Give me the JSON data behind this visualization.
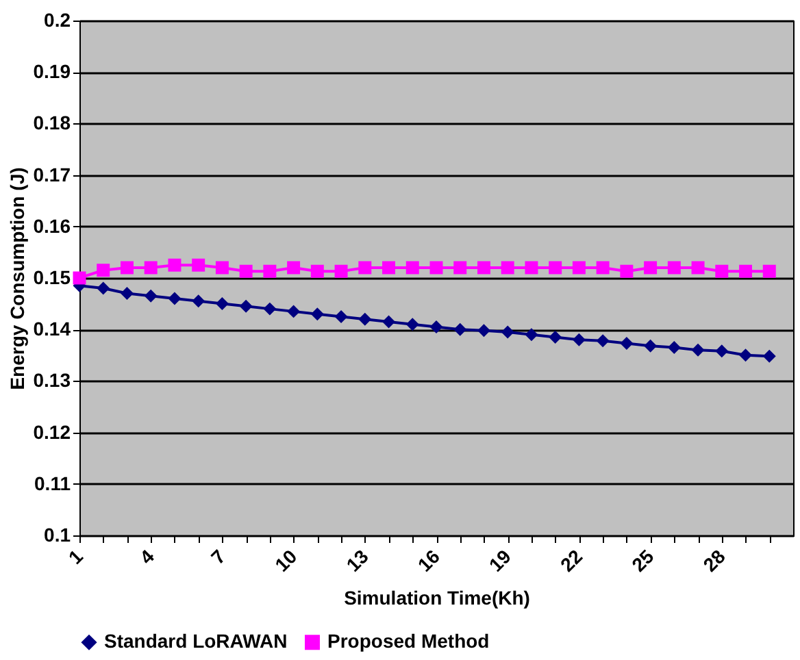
{
  "chart_data": {
    "type": "line",
    "xlabel": "Simulation Time(Kh)",
    "ylabel": "Energy Consumption (J)",
    "categories": [
      "1",
      null,
      null,
      "4",
      null,
      null,
      "7",
      null,
      null,
      "10",
      null,
      null,
      "13",
      null,
      null,
      "16",
      null,
      null,
      "19",
      null,
      null,
      "22",
      null,
      null,
      "25",
      null,
      null,
      "28",
      null,
      null
    ],
    "series": [
      {
        "name": "Standard LoRAWAN",
        "color": "#000080",
        "marker": "diamond",
        "values": [
          0.1485,
          0.148,
          0.147,
          0.1465,
          0.146,
          0.1455,
          0.145,
          0.1445,
          0.144,
          0.1435,
          0.143,
          0.1425,
          0.142,
          0.1415,
          0.141,
          0.1405,
          0.14,
          0.1398,
          0.1395,
          0.139,
          0.1385,
          0.138,
          0.1378,
          0.1373,
          0.1368,
          0.1365,
          0.136,
          0.1358,
          0.135,
          0.1348
        ]
      },
      {
        "name": "Proposed Method",
        "color": "#ff00ff",
        "marker": "square",
        "values": [
          0.15,
          0.1515,
          0.152,
          0.152,
          0.1525,
          0.1525,
          0.152,
          0.1513,
          0.1513,
          0.152,
          0.1513,
          0.1513,
          0.152,
          0.152,
          0.152,
          0.152,
          0.152,
          0.152,
          0.152,
          0.152,
          0.152,
          0.152,
          0.152,
          0.1513,
          0.152,
          0.152,
          0.152,
          0.1513,
          0.1513,
          0.1513
        ]
      }
    ],
    "ylim": [
      0.1,
      0.2
    ],
    "yticks": [
      0.1,
      0.11,
      0.12,
      0.13,
      0.14,
      0.15,
      0.16,
      0.17,
      0.18,
      0.19,
      0.2
    ],
    "grid": "y",
    "legend": "bottom"
  }
}
